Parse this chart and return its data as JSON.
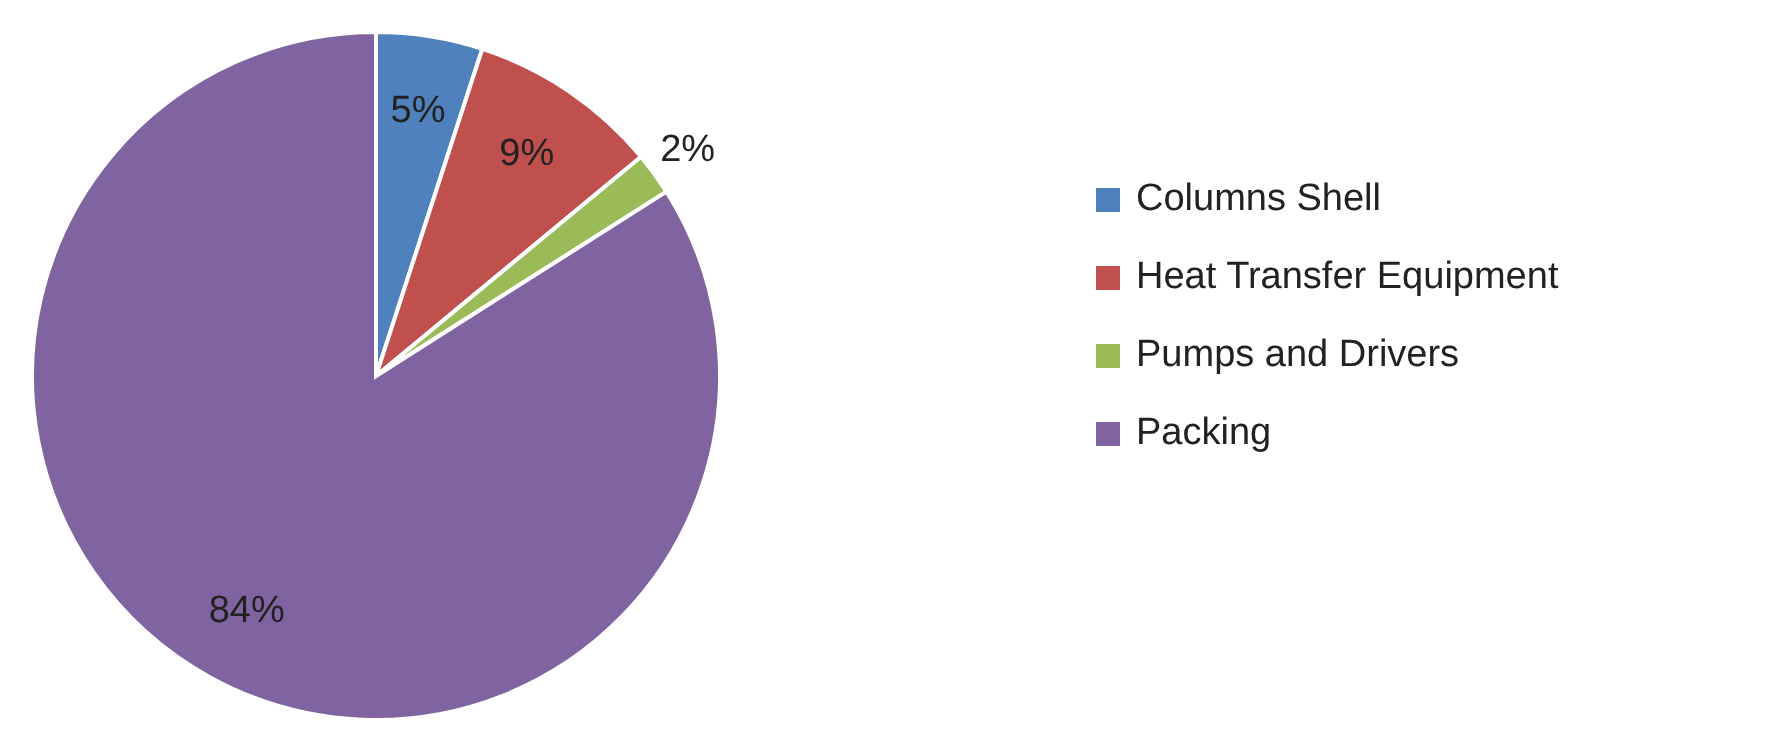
{
  "chart_data": {
    "type": "pie",
    "categories": [
      "Columns Shell",
      "Heat Transfer Equipment",
      "Pumps and Drivers",
      "Packing"
    ],
    "values": [
      5,
      9,
      2,
      84
    ],
    "colors": [
      "#4f81bd",
      "#c0504d",
      "#9bbb59",
      "#8064a2"
    ],
    "value_labels": [
      "5%",
      "9%",
      "2%",
      "84%"
    ],
    "legend": "right"
  }
}
